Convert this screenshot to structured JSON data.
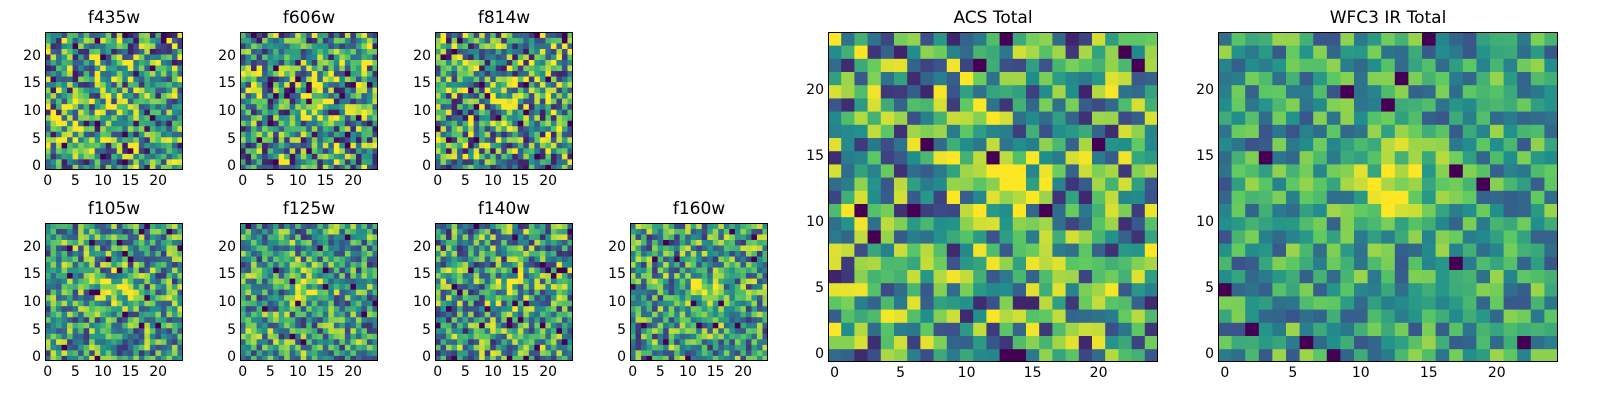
{
  "chart_data": [
    {
      "type": "heatmap",
      "title": "f435w",
      "x": [
        0,
        24
      ],
      "y": [
        0,
        24
      ],
      "xticks": [
        0,
        5,
        10,
        15,
        20
      ],
      "yticks": [
        0,
        5,
        10,
        15,
        20
      ],
      "seed": 11,
      "blob": 0.25,
      "noise": 1.0
    },
    {
      "type": "heatmap",
      "title": "f606w",
      "x": [
        0,
        24
      ],
      "y": [
        0,
        24
      ],
      "xticks": [
        0,
        5,
        10,
        15,
        20
      ],
      "yticks": [
        0,
        5,
        10,
        15,
        20
      ],
      "seed": 23,
      "blob": 0.55,
      "noise": 1.0
    },
    {
      "type": "heatmap",
      "title": "f814w",
      "x": [
        0,
        24
      ],
      "y": [
        0,
        24
      ],
      "xticks": [
        0,
        5,
        10,
        15,
        20
      ],
      "yticks": [
        0,
        5,
        10,
        15,
        20
      ],
      "seed": 37,
      "blob": 0.65,
      "noise": 1.0
    },
    {
      "type": "heatmap",
      "title": "f105w",
      "x": [
        0,
        24
      ],
      "y": [
        0,
        24
      ],
      "xticks": [
        0,
        5,
        10,
        15,
        20
      ],
      "yticks": [
        0,
        5,
        10,
        15,
        20
      ],
      "seed": 41,
      "blob": 0.7,
      "noise": 0.8
    },
    {
      "type": "heatmap",
      "title": "f125w",
      "x": [
        0,
        24
      ],
      "y": [
        0,
        24
      ],
      "xticks": [
        0,
        5,
        10,
        15,
        20
      ],
      "yticks": [
        0,
        5,
        10,
        15,
        20
      ],
      "seed": 53,
      "blob": 0.6,
      "noise": 0.8
    },
    {
      "type": "heatmap",
      "title": "f140w",
      "x": [
        0,
        24
      ],
      "y": [
        0,
        24
      ],
      "xticks": [
        0,
        5,
        10,
        15,
        20
      ],
      "yticks": [
        0,
        5,
        10,
        15,
        20
      ],
      "seed": 67,
      "blob": 0.45,
      "noise": 0.85
    },
    {
      "type": "heatmap",
      "title": "f160w",
      "x": [
        0,
        24
      ],
      "y": [
        0,
        24
      ],
      "xticks": [
        0,
        5,
        10,
        15,
        20
      ],
      "yticks": [
        0,
        5,
        10,
        15,
        20
      ],
      "seed": 79,
      "blob": 0.75,
      "noise": 0.8
    },
    {
      "type": "heatmap",
      "title": "ACS Total",
      "x": [
        0,
        24
      ],
      "y": [
        0,
        24
      ],
      "xticks": [
        0,
        5,
        10,
        15,
        20
      ],
      "yticks": [
        0,
        5,
        10,
        15,
        20
      ],
      "seed": 97,
      "blob": 0.9,
      "noise": 0.9
    },
    {
      "type": "heatmap",
      "title": "WFC3 IR Total",
      "x": [
        0,
        24
      ],
      "y": [
        0,
        24
      ],
      "xticks": [
        0,
        5,
        10,
        15,
        20
      ],
      "yticks": [
        0,
        5,
        10,
        15,
        20
      ],
      "seed": 113,
      "blob": 1.1,
      "noise": 0.6
    }
  ],
  "colormap": [
    "#440154",
    "#3b528b",
    "#21918c",
    "#5ec962",
    "#fde725"
  ]
}
